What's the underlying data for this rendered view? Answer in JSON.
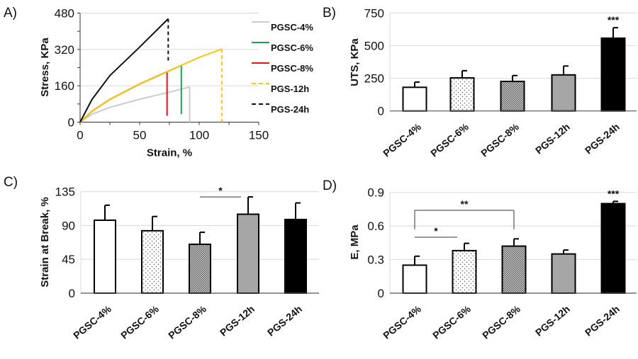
{
  "chart_data": [
    {
      "panel": "A)",
      "type": "line",
      "xlabel": "Strain, %",
      "ylabel": "Stress, KPa",
      "xlim": [
        0,
        150
      ],
      "ylim": [
        0,
        480
      ],
      "xticks": [
        "0",
        "50",
        "100",
        "150"
      ],
      "yticks": [
        "0",
        "160",
        "320",
        "480"
      ],
      "grid": true,
      "legend_position": "right",
      "series": [
        {
          "name": "PGSC-4%",
          "color": "#cccccc",
          "dashed_legend": false,
          "points": [
            [
              0,
              0
            ],
            [
              10,
              35
            ],
            [
              25,
              65
            ],
            [
              50,
              101
            ],
            [
              75,
              132
            ],
            [
              92,
              155
            ]
          ],
          "break_to": 0
        },
        {
          "name": "PGSC-6%",
          "color": "#1aa355",
          "dashed_legend": false,
          "points": [
            [
              0,
              0
            ],
            [
              10,
              48
            ],
            [
              25,
              100
            ],
            [
              50,
              168
            ],
            [
              73,
              222
            ],
            [
              85,
              250
            ]
          ],
          "break_to": 35
        },
        {
          "name": "PGSC-8%",
          "color": "#e0141c",
          "dashed_legend": false,
          "points": [
            [
              0,
              0
            ],
            [
              10,
              48
            ],
            [
              25,
              100
            ],
            [
              50,
              168
            ],
            [
              73,
              222
            ]
          ],
          "break_to": 28
        },
        {
          "name": "PGS-12h",
          "color": "#f5c518",
          "dashed_legend": true,
          "points": [
            [
              0,
              0
            ],
            [
              10,
              48
            ],
            [
              25,
              100
            ],
            [
              50,
              168
            ],
            [
              73,
              222
            ],
            [
              85,
              250
            ],
            [
              100,
              285
            ],
            [
              119,
              322
            ]
          ],
          "break_to": 0
        },
        {
          "name": "PGS-24h",
          "color": "#111111",
          "dashed_legend": true,
          "points": [
            [
              0,
              0
            ],
            [
              10,
              100
            ],
            [
              25,
              205
            ],
            [
              48,
              320
            ],
            [
              74,
              455
            ]
          ],
          "break_to": 263
        }
      ]
    },
    {
      "panel": "B)",
      "type": "bar",
      "ylabel": "UTS, KPa",
      "ylim": [
        0,
        750
      ],
      "yticks": [
        "0",
        "250",
        "500",
        "750"
      ],
      "categories": [
        "PGSC-4%",
        "PGSC-6%",
        "PGSC-8%",
        "PGS-12h",
        "PGS-24h"
      ],
      "values": [
        181,
        253,
        226,
        276,
        557
      ],
      "errors": [
        40,
        55,
        45,
        68,
        80
      ],
      "significance": [
        {
          "label": "***",
          "bar": 4
        }
      ]
    },
    {
      "panel": "C)",
      "type": "bar",
      "ylabel": "Strain at Break, %",
      "ylim": [
        0,
        135
      ],
      "yticks": [
        "0",
        "45",
        "90",
        "135"
      ],
      "categories": [
        "PGSC-4%",
        "PGSC-6%",
        "PGSC-8%",
        "PGS-12h",
        "PGS-24h"
      ],
      "values": [
        97,
        83,
        65,
        105,
        98
      ],
      "errors": [
        20,
        19,
        16,
        23,
        22
      ],
      "significance": [
        {
          "label": "*",
          "from": 2,
          "to": 3,
          "level": 128,
          "ticks": false
        }
      ]
    },
    {
      "panel": "D)",
      "type": "bar",
      "ylabel": "E, MPa",
      "ylim": [
        0,
        0.9
      ],
      "yticks": [
        "0",
        "0.3",
        "0.6",
        "0.9"
      ],
      "categories": [
        "PGSC-4%",
        "PGSC-6%",
        "PGSC-8%",
        "PGS-12h",
        "PGS-24h"
      ],
      "values": [
        0.25,
        0.38,
        0.42,
        0.35,
        0.8
      ],
      "errors": [
        0.08,
        0.065,
        0.065,
        0.035,
        0.02
      ],
      "significance": [
        {
          "label": "***",
          "bar": 4
        },
        {
          "label": "**",
          "from": 0,
          "to": 2,
          "level": 0.74,
          "ticks": true,
          "tick_to": 0.57
        },
        {
          "label": "*",
          "from": 0,
          "to": 1,
          "level": 0.5,
          "ticks": false
        }
      ]
    }
  ]
}
